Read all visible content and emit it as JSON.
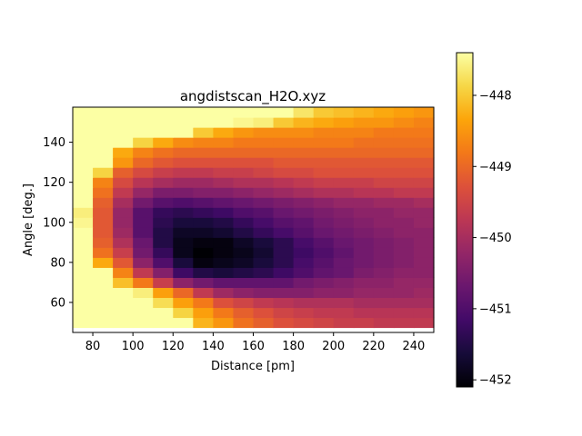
{
  "chart_data": {
    "type": "heatmap",
    "title": "angdistscan_H2O.xyz",
    "xlabel": "Distance [pm]",
    "ylabel": "Angle [deg.]",
    "x": [
      75,
      85,
      95,
      105,
      115,
      125,
      135,
      145,
      155,
      165,
      175,
      185,
      195,
      205,
      215,
      225,
      235,
      245
    ],
    "y": [
      50,
      55,
      60,
      65,
      70,
      75,
      80,
      85,
      90,
      95,
      100,
      105,
      110,
      115,
      120,
      125,
      130,
      135,
      140,
      145,
      150,
      155
    ],
    "xlim": [
      70,
      250
    ],
    "ylim": [
      45,
      157.5
    ],
    "clim": [
      -452.1,
      -447.4
    ],
    "colormap": "inferno",
    "x_ticks": [
      "80",
      "100",
      "120",
      "140",
      "160",
      "180",
      "200",
      "220",
      "240"
    ],
    "y_ticks": [
      "60",
      "80",
      "100",
      "120",
      "140"
    ],
    "colorbar_ticks": [
      "−448",
      "−449",
      "−450",
      "−451",
      "−452"
    ],
    "colorbar_tick_values": [
      -448,
      -449,
      -450,
      -451,
      -452
    ],
    "z": [
      [
        -447.4,
        -447.4,
        -447.4,
        -447.4,
        -447.4,
        -447.4,
        -448.2,
        -448.5,
        -448.9,
        -449.1,
        -449.3,
        -449.4,
        -449.5,
        -449.6,
        -449.6,
        -449.7,
        -449.7,
        -449.7
      ],
      [
        -447.4,
        -447.4,
        -447.4,
        -447.4,
        -447.4,
        -447.9,
        -448.4,
        -448.8,
        -449.1,
        -449.3,
        -449.5,
        -449.6,
        -449.7,
        -449.7,
        -449.8,
        -449.8,
        -449.8,
        -449.8
      ],
      [
        -447.4,
        -447.4,
        -447.4,
        -447.4,
        -447.8,
        -448.4,
        -448.8,
        -449.3,
        -449.5,
        -449.7,
        -449.8,
        -449.9,
        -449.9,
        -449.9,
        -450.0,
        -450.0,
        -450.0,
        -450.0
      ],
      [
        -447.4,
        -447.4,
        -447.4,
        -447.6,
        -448.4,
        -449.0,
        -449.7,
        -450.1,
        -450.3,
        -450.4,
        -450.4,
        -450.4,
        -450.3,
        -450.3,
        -450.2,
        -450.2,
        -450.2,
        -450.1
      ],
      [
        -447.4,
        -447.4,
        -448.1,
        -448.8,
        -449.6,
        -450.3,
        -450.6,
        -450.8,
        -450.8,
        -450.8,
        -450.8,
        -450.6,
        -450.5,
        -450.4,
        -450.3,
        -450.3,
        -450.2,
        -450.2
      ],
      [
        -447.4,
        -447.4,
        -448.7,
        -449.7,
        -450.4,
        -451.2,
        -451.5,
        -451.6,
        -451.5,
        -451.4,
        -451.2,
        -451.0,
        -450.8,
        -450.7,
        -450.5,
        -450.4,
        -450.3,
        -450.3
      ],
      [
        -447.4,
        -448.3,
        -449.2,
        -450.3,
        -451.0,
        -451.6,
        -452.0,
        -451.9,
        -451.8,
        -451.6,
        -451.4,
        -451.1,
        -450.9,
        -450.7,
        -450.6,
        -450.5,
        -450.4,
        -450.3
      ],
      [
        -447.4,
        -448.9,
        -449.6,
        -450.6,
        -451.3,
        -451.9,
        -452.1,
        -452.0,
        -451.9,
        -451.7,
        -451.4,
        -451.2,
        -451.0,
        -450.8,
        -450.6,
        -450.5,
        -450.4,
        -450.3
      ],
      [
        -447.4,
        -449.1,
        -449.9,
        -450.7,
        -451.5,
        -451.9,
        -452.0,
        -452.0,
        -451.8,
        -451.6,
        -451.4,
        -451.1,
        -450.9,
        -450.7,
        -450.6,
        -450.5,
        -450.4,
        -450.3
      ],
      [
        -447.4,
        -449.2,
        -450.1,
        -450.9,
        -451.5,
        -451.8,
        -451.8,
        -451.7,
        -451.5,
        -451.3,
        -451.1,
        -450.9,
        -450.7,
        -450.6,
        -450.5,
        -450.4,
        -450.3,
        -450.3
      ],
      [
        -447.5,
        -449.2,
        -450.2,
        -450.9,
        -451.4,
        -451.6,
        -451.6,
        -451.5,
        -451.3,
        -451.1,
        -450.9,
        -450.8,
        -450.6,
        -450.5,
        -450.4,
        -450.3,
        -450.3,
        -450.2
      ],
      [
        -447.6,
        -449.2,
        -450.2,
        -450.9,
        -451.3,
        -451.4,
        -451.3,
        -451.2,
        -451.0,
        -450.9,
        -450.7,
        -450.6,
        -450.5,
        -450.4,
        -450.3,
        -450.3,
        -450.2,
        -450.2
      ],
      [
        -447.4,
        -449.1,
        -450.0,
        -450.6,
        -450.9,
        -451.0,
        -450.9,
        -450.8,
        -450.7,
        -450.6,
        -450.5,
        -450.4,
        -450.3,
        -450.2,
        -450.2,
        -450.1,
        -450.1,
        -450.0
      ],
      [
        -447.4,
        -448.9,
        -449.7,
        -450.2,
        -450.5,
        -450.5,
        -450.4,
        -450.4,
        -450.3,
        -450.2,
        -450.1,
        -450.0,
        -449.9,
        -449.9,
        -449.8,
        -449.8,
        -449.7,
        -449.7
      ],
      [
        -447.4,
        -448.7,
        -449.4,
        -449.8,
        -450.0,
        -450.1,
        -450.1,
        -450.0,
        -449.9,
        -449.9,
        -449.8,
        -449.7,
        -449.6,
        -449.6,
        -449.6,
        -449.5,
        -449.5,
        -449.5
      ],
      [
        -447.4,
        -447.9,
        -449.1,
        -449.4,
        -449.6,
        -449.7,
        -449.7,
        -449.6,
        -449.6,
        -449.5,
        -449.4,
        -449.4,
        -449.3,
        -449.3,
        -449.3,
        -449.3,
        -449.3,
        -449.3
      ],
      [
        -447.4,
        -447.4,
        -448.5,
        -449.0,
        -449.2,
        -449.3,
        -449.3,
        -449.3,
        -449.3,
        -449.3,
        -449.2,
        -449.2,
        -449.2,
        -449.2,
        -449.2,
        -449.2,
        -449.2,
        -449.2
      ],
      [
        -447.4,
        -447.4,
        -448.3,
        -448.7,
        -448.9,
        -449.0,
        -449.0,
        -449.0,
        -449.0,
        -449.0,
        -449.0,
        -449.0,
        -449.0,
        -449.0,
        -449.0,
        -449.0,
        -449.0,
        -449.0
      ],
      [
        -447.4,
        -447.4,
        -447.4,
        -447.9,
        -448.3,
        -448.6,
        -448.7,
        -448.7,
        -448.8,
        -448.8,
        -448.8,
        -448.8,
        -448.8,
        -448.8,
        -448.9,
        -448.9,
        -448.9,
        -448.9
      ],
      [
        -447.4,
        -447.4,
        -447.4,
        -447.4,
        -447.4,
        -447.4,
        -448.0,
        -448.3,
        -448.5,
        -448.6,
        -448.6,
        -448.6,
        -448.7,
        -448.7,
        -448.7,
        -448.8,
        -448.8,
        -448.8
      ],
      [
        -447.4,
        -447.4,
        -447.4,
        -447.4,
        -447.4,
        -447.4,
        -447.4,
        -447.4,
        -447.5,
        -447.6,
        -448.0,
        -448.2,
        -448.3,
        -448.4,
        -448.5,
        -448.5,
        -448.6,
        -448.7
      ],
      [
        -447.4,
        -447.4,
        -447.4,
        -447.4,
        -447.4,
        -447.4,
        -447.4,
        -447.4,
        -447.4,
        -447.4,
        -447.4,
        -447.7,
        -448.0,
        -448.1,
        -448.2,
        -448.3,
        -448.4,
        -448.5
      ]
    ]
  }
}
